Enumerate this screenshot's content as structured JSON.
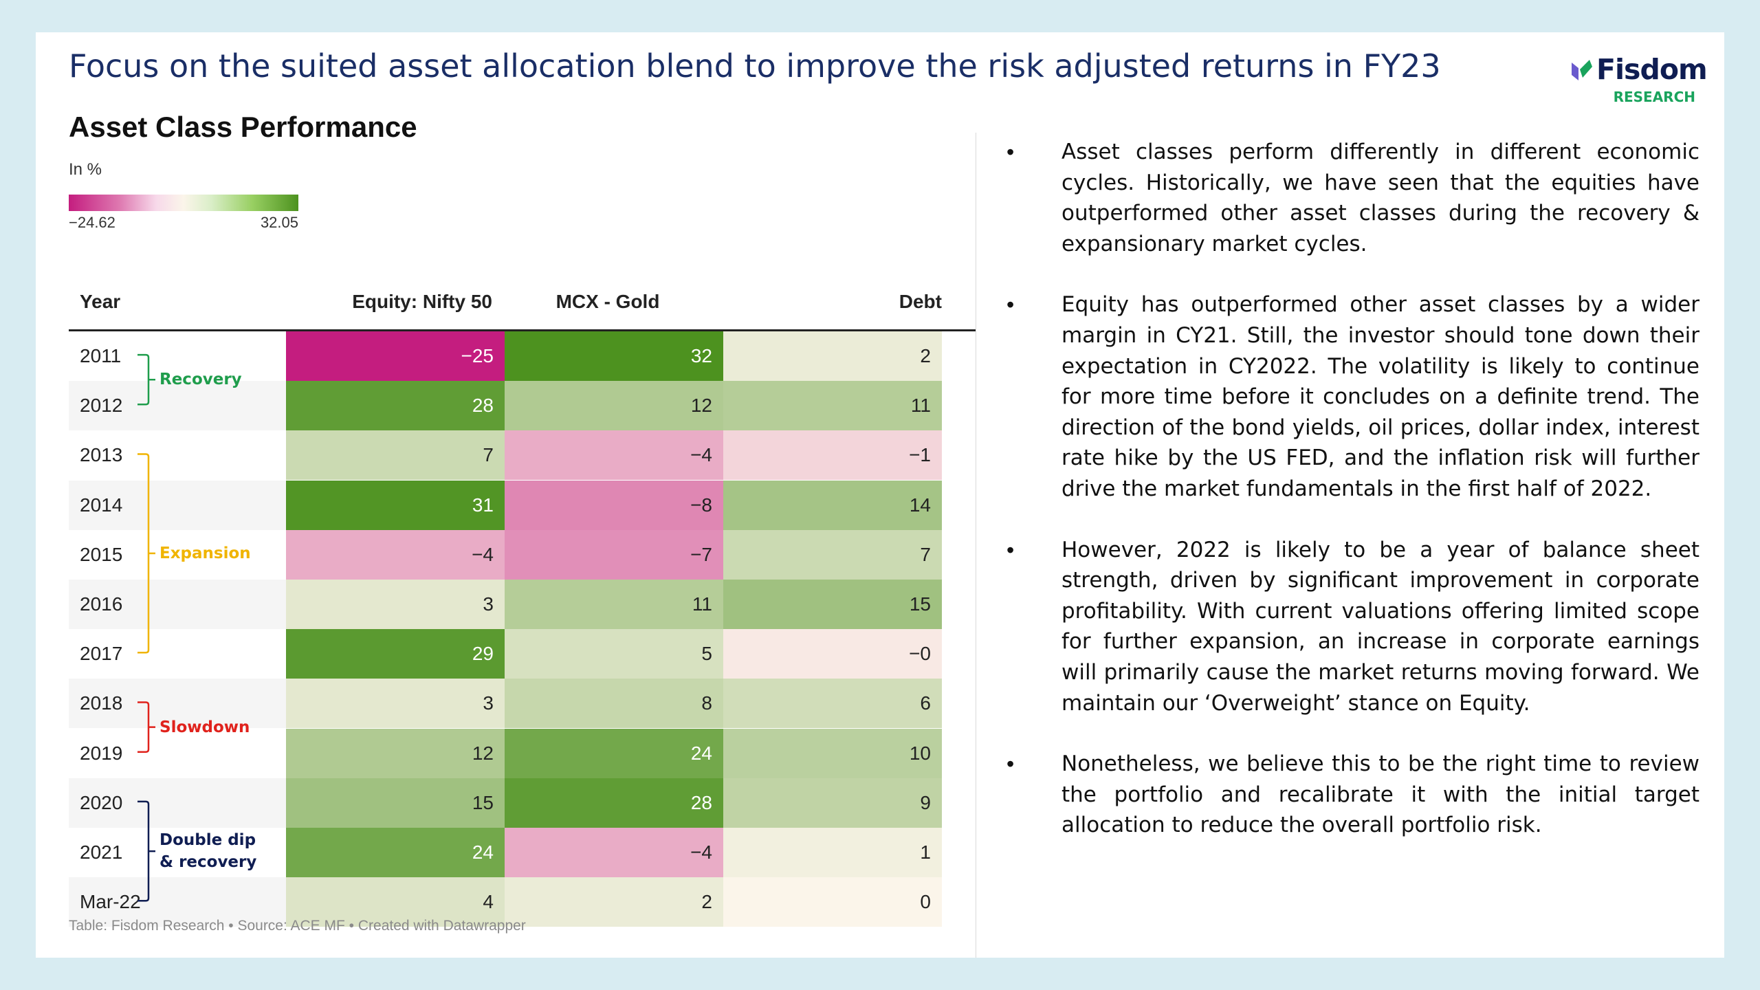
{
  "header": {
    "title": "Focus on the suited asset allocation blend to improve the risk adjusted returns in FY23",
    "logo_name": "Fisdom",
    "logo_sub": "RESEARCH"
  },
  "chart_data": {
    "type": "heatmap",
    "title": "Asset Class Performance",
    "subtitle": "In %",
    "color_scale": {
      "min": -24.62,
      "max": 32.05,
      "min_label": "−24.62",
      "max_label": "32.05",
      "negative_color": "#c41d7f",
      "positive_color": "#4d921f",
      "neutral_color": "#fbf5ea"
    },
    "columns": [
      "Year",
      "Equity: Nifty 50",
      "MCX - Gold",
      "Debt"
    ],
    "rows": [
      {
        "year": "2011",
        "values": [
          -24.62,
          32.05,
          2
        ],
        "labels": [
          "−25",
          "32",
          "2"
        ]
      },
      {
        "year": "2012",
        "values": [
          28,
          12,
          11
        ],
        "labels": [
          "28",
          "12",
          "11"
        ]
      },
      {
        "year": "2013",
        "values": [
          7,
          -4,
          -1
        ],
        "labels": [
          "7",
          "−4",
          "−1"
        ]
      },
      {
        "year": "2014",
        "values": [
          31,
          -8,
          14
        ],
        "labels": [
          "31",
          "−8",
          "14"
        ]
      },
      {
        "year": "2015",
        "values": [
          -4,
          -7,
          7
        ],
        "labels": [
          "−4",
          "−7",
          "7"
        ]
      },
      {
        "year": "2016",
        "values": [
          3,
          11,
          15
        ],
        "labels": [
          "3",
          "11",
          "15"
        ]
      },
      {
        "year": "2017",
        "values": [
          29,
          5,
          -0.2
        ],
        "labels": [
          "29",
          "5",
          "−0"
        ]
      },
      {
        "year": "2018",
        "values": [
          3,
          8,
          6
        ],
        "labels": [
          "3",
          "8",
          "6"
        ]
      },
      {
        "year": "2019",
        "values": [
          12,
          24,
          10
        ],
        "labels": [
          "12",
          "24",
          "10"
        ]
      },
      {
        "year": "2020",
        "values": [
          15,
          28,
          9
        ],
        "labels": [
          "15",
          "28",
          "9"
        ]
      },
      {
        "year": "2021",
        "values": [
          24,
          -4,
          1
        ],
        "labels": [
          "24",
          "−4",
          "1"
        ]
      },
      {
        "year": "Mar-22",
        "values": [
          4,
          2,
          0
        ],
        "labels": [
          "4",
          "2",
          "0"
        ]
      }
    ],
    "phases": [
      {
        "label": "Recovery",
        "start_row": 0,
        "end_row": 1,
        "color": "#1f9d4c"
      },
      {
        "label": "Expansion",
        "start_row": 2,
        "end_row": 6,
        "color": "#f0b400"
      },
      {
        "label": "Slowdown",
        "start_row": 7,
        "end_row": 8,
        "color": "#e0221c"
      },
      {
        "label": "Double dip & recovery",
        "start_row": 9,
        "end_row": 11,
        "color": "#0f1d52"
      }
    ],
    "footer": "Table: Fisdom Research • Source: ACE MF • Created with Datawrapper"
  },
  "commentary": {
    "bullet_char": "•",
    "bullets": [
      "Asset classes perform differently in different economic cycles. Historically, we have seen that the equities have outperformed other asset classes during the recovery & expansionary market cycles.",
      "Equity has outperformed other asset classes by a wider margin in CY21. Still, the investor should tone down their expectation in CY2022. The volatility is likely to continue for more time before it concludes on a definite trend. The direction of the bond yields, oil prices, dollar index, interest rate hike by the US FED, and the inflation risk will further drive the market fundamentals in the first half of 2022.",
      "However, 2022 is likely to be a year of balance sheet strength, driven by significant improvement in corporate profitability. With current valuations offering limited scope for further expansion, an increase in corporate earnings will primarily cause the market returns moving forward. We maintain our ‘Overweight’ stance on Equity.",
      "Nonetheless, we believe this to be the right time to review the portfolio and recalibrate it with the initial target allocation to reduce the overall portfolio risk."
    ]
  }
}
